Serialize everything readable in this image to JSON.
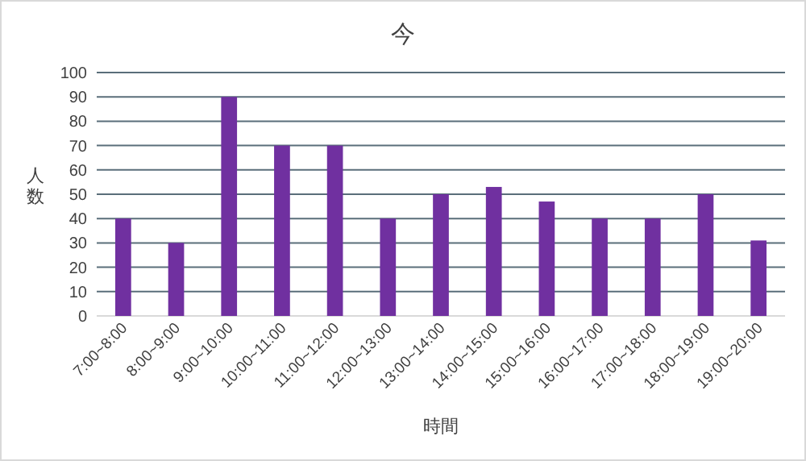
{
  "chart_data": {
    "type": "bar",
    "title": "今",
    "xlabel": "時間",
    "ylabel": "人数",
    "categories": [
      "7:00~8:00",
      "8:00~9:00",
      "9:00~10:00",
      "10:00~11:00",
      "11:00~12:00",
      "12:00~13:00",
      "13:00~14:00",
      "14:00~15:00",
      "15:00~16:00",
      "16:00~17:00",
      "17:00~18:00",
      "18:00~19:00",
      "19:00~20:00"
    ],
    "values": [
      40,
      30,
      90,
      70,
      70,
      40,
      50,
      53,
      47,
      40,
      40,
      50,
      31
    ],
    "color": "#7030a0",
    "ylim": [
      0,
      100
    ],
    "yticks": [
      0,
      10,
      20,
      30,
      40,
      50,
      60,
      70,
      80,
      90,
      100
    ],
    "grid": "y"
  }
}
